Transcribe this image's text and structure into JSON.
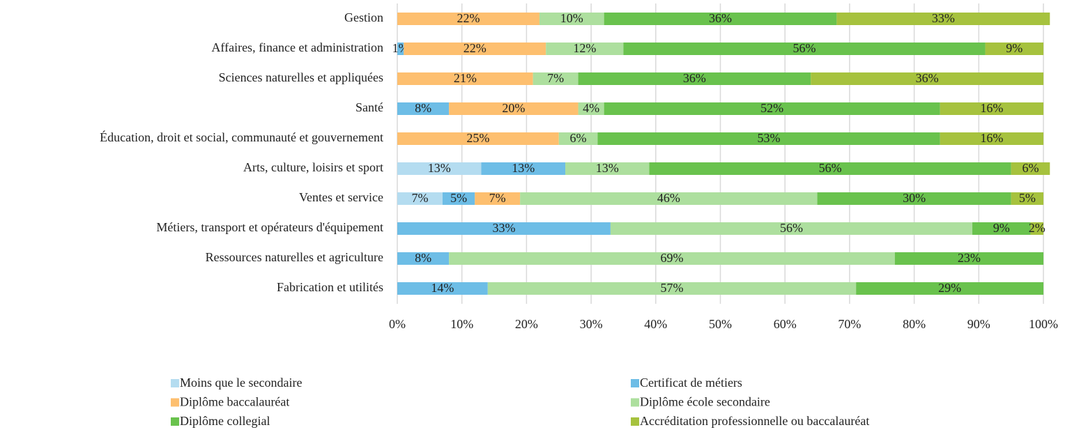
{
  "chart_data": {
    "type": "stacked_barh",
    "categories": [
      "Gestion",
      "Affaires, finance et administration",
      "Sciences naturelles et appliquées",
      "Santé",
      "Éducation, droit et social, communauté et gouvernement",
      "Arts, culture, loisirs et sport",
      "Ventes et service",
      "Métiers, transport et opérateurs d'équipement",
      "Ressources naturelles et agriculture",
      "Fabrication et utilités"
    ],
    "series": [
      {
        "name": "Moins que le secondaire",
        "color": "#b4dcf0",
        "values": [
          null,
          null,
          null,
          null,
          null,
          13,
          7,
          null,
          null,
          null
        ],
        "value_labels": [
          null,
          null,
          null,
          null,
          null,
          "13%",
          "7%",
          null,
          null,
          null
        ]
      },
      {
        "name": "Certificat de métiers",
        "color": "#6dbde6",
        "values": [
          null,
          1,
          null,
          8,
          null,
          13,
          5,
          33,
          8,
          14
        ],
        "value_labels": [
          null,
          "1%",
          null,
          "8%",
          null,
          "13%",
          "5%",
          "33%",
          "8%",
          "14%"
        ]
      },
      {
        "name": "Diplôme baccalauréat",
        "color": "#fdbf6f",
        "values": [
          22,
          22,
          21,
          20,
          25,
          null,
          7,
          null,
          null,
          null
        ],
        "value_labels": [
          "22%",
          "22%",
          "21%",
          "20%",
          "25%",
          null,
          "7%",
          null,
          null,
          null
        ]
      },
      {
        "name": "Diplôme école secondaire",
        "color": "#addf9e",
        "values": [
          10,
          12,
          7,
          4,
          6,
          13,
          46,
          56,
          69,
          57
        ],
        "value_labels": [
          "10%",
          "12%",
          "7%",
          "4%",
          "6%",
          "13%",
          "46%",
          "56%",
          "69%",
          "57%"
        ]
      },
      {
        "name": "Diplôme collegial",
        "color": "#69c24d",
        "values": [
          36,
          56,
          36,
          52,
          53,
          56,
          30,
          9,
          23,
          29
        ],
        "value_labels": [
          "36%",
          "56%",
          "36%",
          "52%",
          "53%",
          "56%",
          "30%",
          "9%",
          "23%",
          "29%"
        ]
      },
      {
        "name": "Accréditation professionnelle  ou baccalauréat",
        "color": "#a6c23e",
        "values": [
          33,
          9,
          36,
          16,
          16,
          6,
          5,
          2,
          null,
          null
        ],
        "value_labels": [
          "33%",
          "9%",
          "36%",
          "16%",
          "16%",
          "6%",
          "5%",
          "2%",
          null,
          null
        ]
      }
    ],
    "xlim": [
      0,
      100
    ],
    "xticks": [
      {
        "value": 0,
        "label": "0%"
      },
      {
        "value": 10,
        "label": "10%"
      },
      {
        "value": 20,
        "label": "20%"
      },
      {
        "value": 30,
        "label": "30%"
      },
      {
        "value": 40,
        "label": "40%"
      },
      {
        "value": 50,
        "label": "50%"
      },
      {
        "value": 60,
        "label": "60%"
      },
      {
        "value": 70,
        "label": "70%"
      },
      {
        "value": 80,
        "label": "80%"
      },
      {
        "value": 90,
        "label": "90%"
      },
      {
        "value": 100,
        "label": "100%"
      }
    ],
    "grid": true,
    "legend": "bottom"
  }
}
